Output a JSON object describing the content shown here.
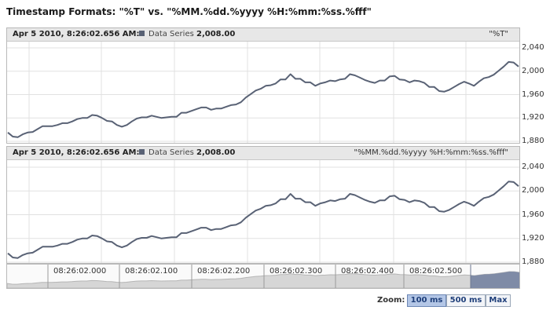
{
  "page_title": "Timestamp Formats: \"%T\" vs. \"%MM.%dd.%yyyy %H:%mm:%ss.%fff\"",
  "panels": [
    {
      "header_time": "Apr 5 2010, 8:26:02.656 AM:",
      "series_name": "Data Series",
      "series_value": "2,008.00",
      "format_label": "\"%T\""
    },
    {
      "header_time": "Apr 5 2010, 8:26:02.656 AM:",
      "series_name": "Data Series",
      "series_value": "2,008.00",
      "format_label": "\"%MM.%dd.%yyyy %H:%mm:%ss.%fff\""
    }
  ],
  "y_ticks": [
    "1,880",
    "1,920",
    "1,960",
    "2,000",
    "2,040"
  ],
  "navigator": {
    "time_labels": [
      "08:26:02.000",
      "08:26:02.100",
      "08:26:02.200",
      "08:26:02.300",
      "08:26:02.400",
      "08:26:02.500"
    ]
  },
  "zoom": {
    "label": "Zoom:",
    "buttons": [
      "100 ms",
      "500 ms",
      "Max"
    ],
    "active": "100 ms"
  },
  "colors": {
    "line": "#596275",
    "grid": "#e1e1e1",
    "navigator_fill": "#d6d6d6",
    "navigator_selected": "#7f8ba6"
  },
  "chart_data": {
    "type": "line",
    "series": [
      {
        "name": "Data Series",
        "values": [
          1895,
          1888,
          1887,
          1892,
          1895,
          1896,
          1901,
          1906,
          1906,
          1906,
          1908,
          1911,
          1911,
          1914,
          1918,
          1920,
          1920,
          1925,
          1924,
          1920,
          1915,
          1914,
          1908,
          1905,
          1908,
          1914,
          1919,
          1921,
          1921,
          1924,
          1922,
          1920,
          1921,
          1922,
          1922,
          1929,
          1929,
          1932,
          1935,
          1938,
          1938,
          1934,
          1936,
          1936,
          1939,
          1942,
          1943,
          1947,
          1955,
          1961,
          1967,
          1970,
          1975,
          1976,
          1979,
          1986,
          1986,
          1995,
          1987,
          1987,
          1981,
          1981,
          1975,
          1979,
          1981,
          1984,
          1983,
          1986,
          1987,
          1995,
          1993,
          1989,
          1985,
          1982,
          1980,
          1984,
          1984,
          1991,
          1992,
          1986,
          1985,
          1981,
          1984,
          1983,
          1980,
          1973,
          1973,
          1966,
          1965,
          1968,
          1973,
          1978,
          1982,
          1979,
          1975,
          1982,
          1988,
          1990,
          1994,
          2001,
          2008,
          2016,
          2015,
          2008
        ]
      }
    ],
    "y_range": [
      1880,
      2040
    ],
    "x_axis": "time (08:26:02.000 – 08:26:02.656)"
  }
}
